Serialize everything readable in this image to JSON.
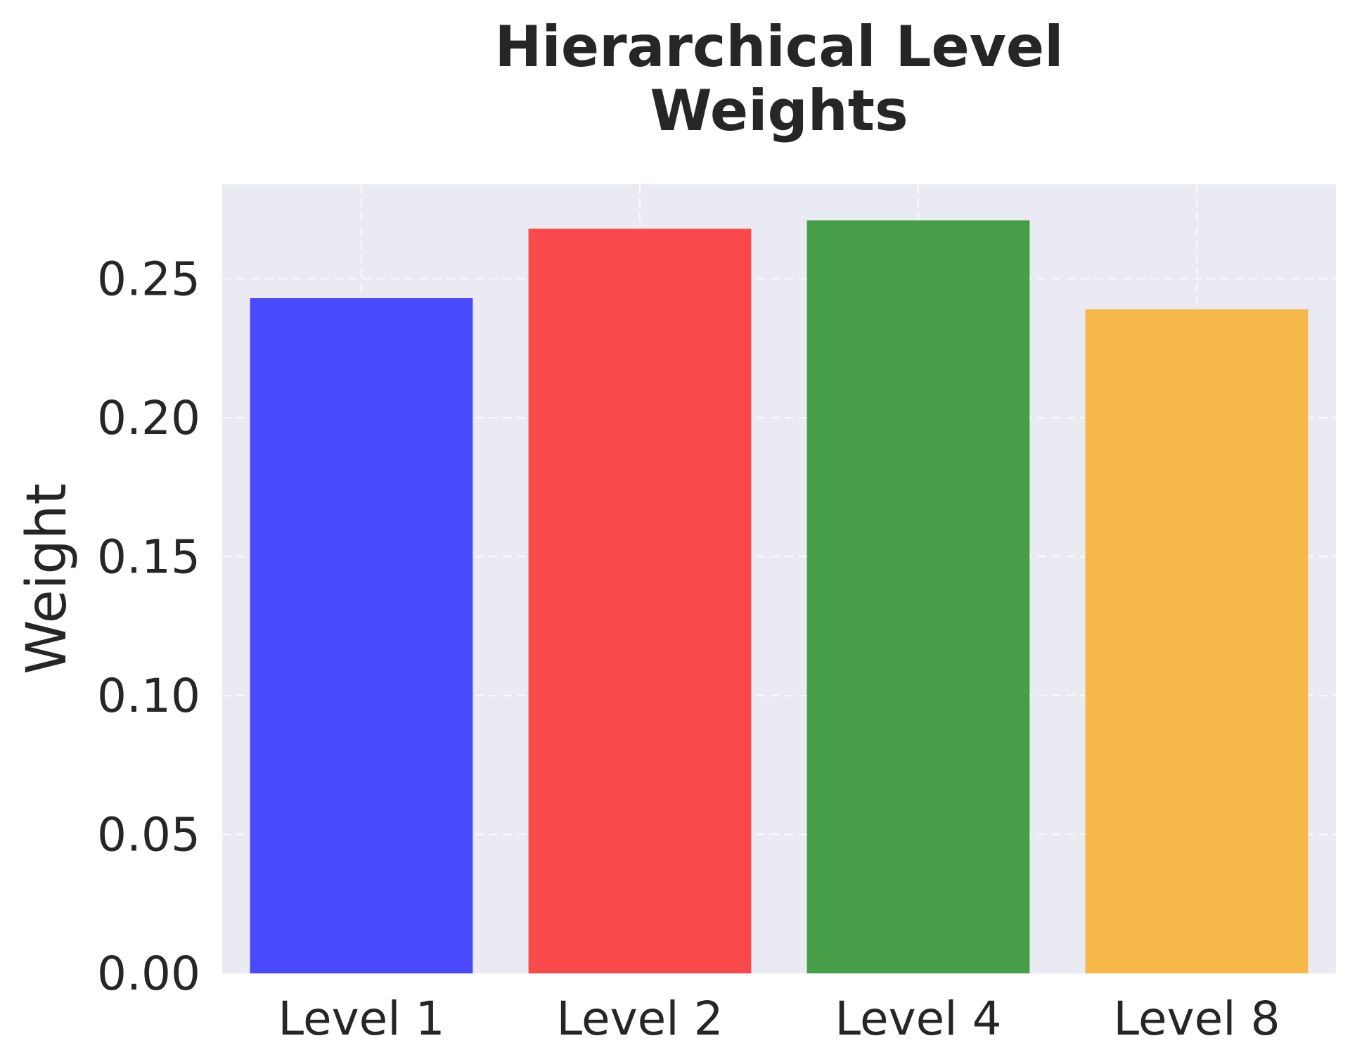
{
  "chart_data": {
    "type": "bar",
    "title": [
      "Hierarchical Level",
      "Weights"
    ],
    "xlabel": "",
    "ylabel": "Weight",
    "categories": [
      "Level 1",
      "Level 2",
      "Level 4",
      "Level 8"
    ],
    "values": [
      0.243,
      0.268,
      0.271,
      0.239
    ],
    "colors": [
      "#4949fd",
      "#f9494b",
      "#479e48",
      "#f7b84a"
    ],
    "ylim": [
      0,
      0.284
    ],
    "yticks": [
      "0.00",
      "0.05",
      "0.10",
      "0.15",
      "0.20",
      "0.25"
    ],
    "ytick_values": [
      0,
      0.05,
      0.1,
      0.15,
      0.2,
      0.25
    ],
    "grid": true,
    "plot_background": "#eaeaf2"
  }
}
